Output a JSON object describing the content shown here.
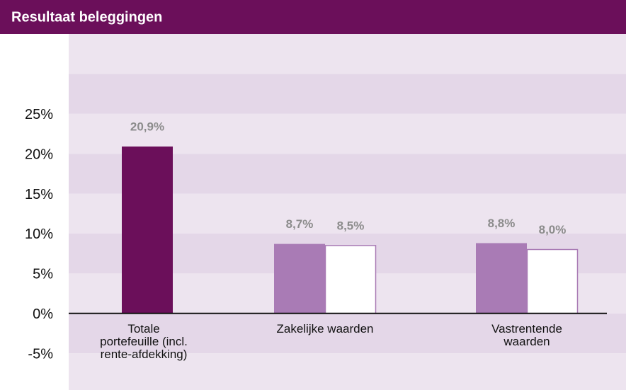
{
  "chart_data": {
    "type": "bar",
    "title": "Resultaat beleggingen",
    "categories": [
      "Totale portefeuille (incl. rente-afdekking)",
      "Zakelijke waarden",
      "Vastrentende waarden"
    ],
    "series": [
      {
        "colors": [
          "#6b0f5a",
          "#a97bb5",
          "#a97bb5"
        ],
        "values": [
          20.9,
          8.7,
          8.8
        ],
        "value_labels": [
          "20,9%",
          "8,7%",
          "8,8%"
        ]
      },
      {
        "color": "#a97bb5",
        "outline": true,
        "values": [
          null,
          8.5,
          8.0
        ],
        "value_labels": [
          null,
          "8,5%",
          "8,0%"
        ]
      }
    ],
    "ylim": [
      -9.6,
      35
    ],
    "yticks": [
      {
        "value": -5,
        "label": "-5%"
      },
      {
        "value": 0,
        "label": "0%"
      },
      {
        "value": 5,
        "label": "5%"
      },
      {
        "value": 10,
        "label": "10%"
      },
      {
        "value": 15,
        "label": "15%"
      },
      {
        "value": 20,
        "label": "20%"
      },
      {
        "value": 25,
        "label": "25%"
      }
    ],
    "grid": true
  }
}
